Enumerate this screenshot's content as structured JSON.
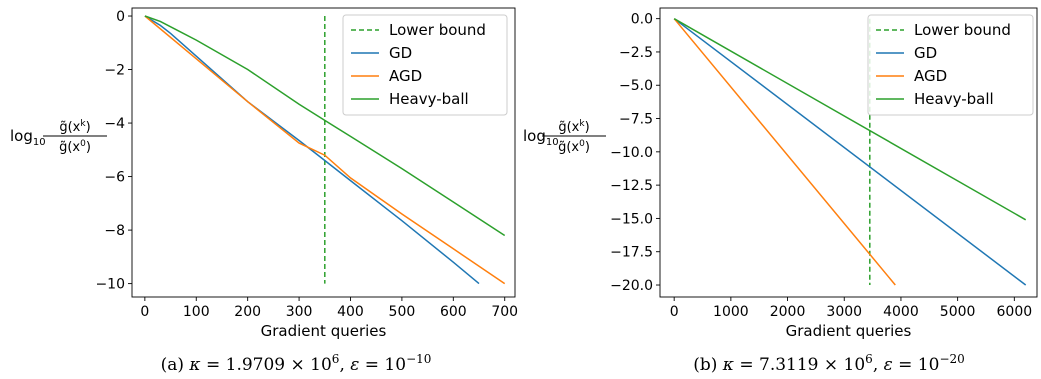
{
  "chart_data": [
    {
      "type": "line",
      "caption": {
        "prefix": "(a) ",
        "kappa_mantissa": "1.9709",
        "kappa_exp": "6",
        "eps_exp": "−10"
      },
      "xlabel": "Gradient queries",
      "ylabel": {
        "log": "log",
        "sub": "10",
        "num_base": "g̃(x",
        "num_sup": "k",
        "den_base": "g̃(x",
        "den_sup": "0",
        "close": ")"
      },
      "xlim": [
        -25,
        720
      ],
      "ylim": [
        -10.5,
        0.3
      ],
      "xticks": [
        0,
        100,
        200,
        300,
        400,
        500,
        600,
        700
      ],
      "xtick_labels": [
        "0",
        "100",
        "200",
        "300",
        "400",
        "500",
        "600",
        "700"
      ],
      "yticks": [
        0,
        -2,
        -4,
        -6,
        -8,
        -10
      ],
      "ytick_labels": [
        "0",
        "−2",
        "−4",
        "−6",
        "−8",
        "−10"
      ],
      "grid": false,
      "legend": "top-right",
      "series": [
        {
          "name": "Lower bound",
          "color": "#2ca02c",
          "dash": true,
          "x": [
            350,
            350
          ],
          "y": [
            0,
            -10
          ]
        },
        {
          "name": "GD",
          "color": "#1f77b4",
          "x": [
            0,
            30,
            50,
            100,
            200,
            300,
            350,
            400,
            500,
            600,
            650
          ],
          "y": [
            0,
            -0.35,
            -0.65,
            -1.5,
            -3.2,
            -4.65,
            -5.4,
            -6.15,
            -7.65,
            -9.2,
            -10.0
          ]
        },
        {
          "name": "AGD",
          "color": "#ff7f0e",
          "x": [
            0,
            100,
            200,
            300,
            350,
            400,
            500,
            600,
            700
          ],
          "y": [
            0,
            -1.6,
            -3.2,
            -4.75,
            -5.2,
            -6.05,
            -7.4,
            -8.7,
            -10.0
          ]
        },
        {
          "name": "Heavy-ball",
          "color": "#2ca02c",
          "x": [
            0,
            30,
            60,
            100,
            200,
            300,
            350,
            400,
            500,
            600,
            700
          ],
          "y": [
            0,
            -0.2,
            -0.5,
            -0.9,
            -2.0,
            -3.3,
            -3.9,
            -4.5,
            -5.7,
            -6.95,
            -8.2
          ]
        }
      ]
    },
    {
      "type": "line",
      "caption": {
        "prefix": "(b) ",
        "kappa_mantissa": "7.3119",
        "kappa_exp": "6",
        "eps_exp": "−20"
      },
      "xlabel": "Gradient queries",
      "ylabel": {
        "log": "log",
        "sub": "10",
        "num_base": "g̃(x",
        "num_sup": "k",
        "den_base": "g̃(x",
        "den_sup": "0",
        "close": ")"
      },
      "xlim": [
        -250,
        6400
      ],
      "ylim": [
        -20.9,
        0.8
      ],
      "xticks": [
        0,
        1000,
        2000,
        3000,
        4000,
        5000,
        6000
      ],
      "xtick_labels": [
        "0",
        "1000",
        "2000",
        "3000",
        "4000",
        "5000",
        "6000"
      ],
      "yticks": [
        0,
        -2.5,
        -5,
        -7.5,
        -10,
        -12.5,
        -15,
        -17.5,
        -20
      ],
      "ytick_labels": [
        "0.0",
        "−2.5",
        "−5.0",
        "−7.5",
        "−10.0",
        "−12.5",
        "−15.0",
        "−17.5",
        "−20.0"
      ],
      "grid": false,
      "legend": "top-right",
      "series": [
        {
          "name": "Lower bound",
          "color": "#2ca02c",
          "dash": true,
          "x": [
            3450,
            3450
          ],
          "y": [
            0,
            -20
          ]
        },
        {
          "name": "GD",
          "color": "#1f77b4",
          "x": [
            0,
            6200
          ],
          "y": [
            0,
            -20.0
          ]
        },
        {
          "name": "AGD",
          "color": "#ff7f0e",
          "x": [
            0,
            3900
          ],
          "y": [
            0,
            -20.0
          ]
        },
        {
          "name": "Heavy-ball",
          "color": "#2ca02c",
          "x": [
            0,
            6200
          ],
          "y": [
            0,
            -15.1
          ]
        }
      ]
    }
  ]
}
